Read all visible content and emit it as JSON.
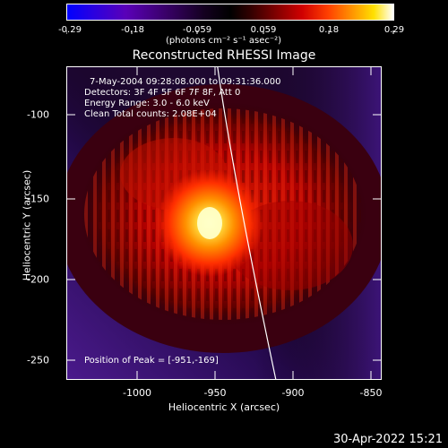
{
  "colorbar": {
    "tick_labels": [
      "-0.29",
      "-0.18",
      "-0.059",
      "0.059",
      "0.18",
      "0.29"
    ],
    "units_label": "(photons cm⁻² s⁻¹ asec⁻²)"
  },
  "plot": {
    "title": "Reconstructed RHESSI Image",
    "xlabel": "Heliocentric X (arcsec)",
    "ylabel": "Heliocentric Y (arcsec)",
    "x_ticks": [
      "-1000",
      "-950",
      "-900",
      "-850"
    ],
    "y_ticks": [
      "-100",
      "-150",
      "-200",
      "-250"
    ],
    "info_lines": [
      "7-May-2004 09:28:08.000 to 09:31:36.000",
      "Detectors: 3F 4F 5F 6F 7F 8F, Att 0",
      "Energy Range: 3.0 - 6.0 keV",
      "Clean     Total counts: 2.08E+04"
    ],
    "peak_text": "Position of Peak = [-951,-169]"
  },
  "footer": {
    "timestamp": "30-Apr-2022 15:21"
  },
  "colors": {
    "background": "#000000",
    "limb_line": "#ffffff",
    "bright_core": "#ffffc0"
  }
}
